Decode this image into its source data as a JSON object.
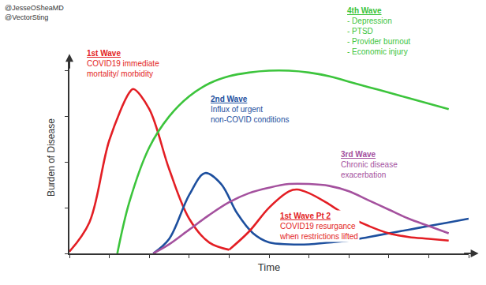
{
  "chart_data": {
    "type": "line",
    "x_label": "Time",
    "y_label": "Burden of Disease",
    "credits": [
      "@JesseOSheaMD",
      "@VectorSting"
    ],
    "xlim": [
      0,
      100
    ],
    "ylim": [
      0,
      105
    ],
    "xticks": [
      0,
      10,
      20,
      30,
      40,
      50,
      60,
      70,
      80,
      90,
      100
    ],
    "yticks": [
      0,
      25,
      50,
      75,
      100
    ],
    "tick_labels": false,
    "grid": false,
    "series": [
      {
        "name": "1st Wave",
        "description": [
          "COVID19 immediate",
          "mortality/ morbidity"
        ],
        "color": "#e31e24",
        "x": [
          0,
          5,
          10,
          15,
          16,
          20,
          25,
          30,
          35,
          40
        ],
        "values": [
          1,
          17,
          62,
          88,
          90,
          79,
          46,
          19,
          6,
          2
        ]
      },
      {
        "name": "2nd Wave",
        "description": [
          "Influx of urgent",
          "non-COVID conditions"
        ],
        "color": "#1d4f9e",
        "x": [
          21,
          25,
          30,
          34,
          38,
          42,
          46,
          50,
          55,
          60,
          65,
          70,
          75,
          80,
          85,
          90,
          95,
          100
        ],
        "values": [
          0,
          8,
          32,
          44,
          38,
          22,
          11,
          6,
          5,
          5,
          6,
          7,
          9,
          11,
          13,
          15,
          17,
          19
        ]
      },
      {
        "name": "3rd Wave",
        "description": [
          "Chronic disease",
          "exacerbation"
        ],
        "color": "#a4519e",
        "x": [
          21,
          25,
          30,
          35,
          40,
          45,
          50,
          55,
          60,
          65,
          70,
          75,
          80,
          85,
          90,
          95
        ],
        "values": [
          0,
          5,
          13,
          21,
          28,
          33,
          36,
          38,
          38,
          37,
          34,
          29,
          24,
          19,
          15,
          11
        ]
      },
      {
        "name": "1st Wave Pt 2",
        "description": [
          "COVID19 resurgance",
          "when restrictions lifted"
        ],
        "color": "#e31e24",
        "x": [
          40,
          45,
          50,
          55,
          57,
          60,
          65,
          70,
          75,
          80,
          85,
          90,
          95
        ],
        "values": [
          2,
          12,
          25,
          34,
          35,
          33,
          27,
          20,
          15,
          11,
          9,
          8,
          7
        ]
      },
      {
        "name": "4th Wave",
        "description": [
          "- Depression",
          "- PTSD",
          "- Provider burnout",
          "- Economic injury"
        ],
        "color": "#3cc43c",
        "x": [
          12,
          15,
          20,
          25,
          30,
          35,
          40,
          45,
          50,
          55,
          60,
          65,
          70,
          75,
          80,
          85,
          90,
          95
        ],
        "values": [
          0,
          28,
          58,
          75,
          86,
          93,
          97,
          99,
          100,
          100,
          99,
          97,
          94,
          91,
          88,
          85,
          82,
          79
        ]
      }
    ]
  }
}
